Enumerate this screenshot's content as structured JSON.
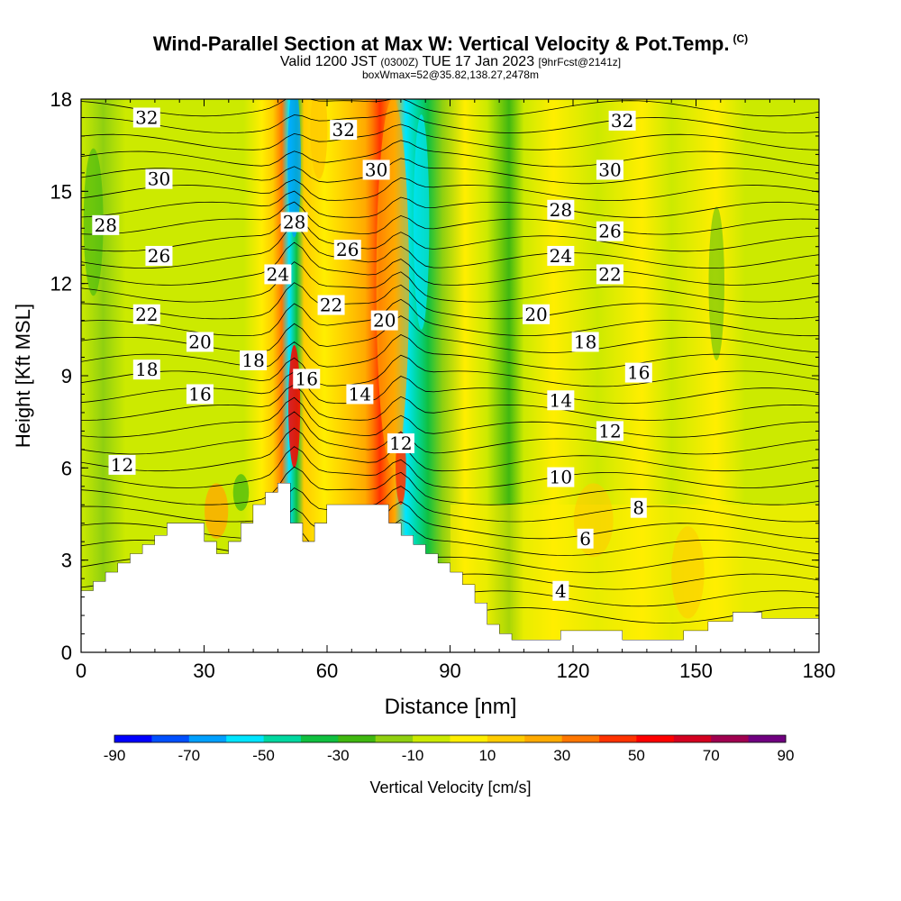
{
  "header": {
    "title_main": "Wind-Parallel Section at Max W: Vertical Velocity & Pot.Temp.",
    "title_copyright": "(C)",
    "valid_prefix": "Valid 1200 JST",
    "valid_utc": "(0300Z)",
    "valid_date": "TUE 17 Jan 2023",
    "forecast_info": "[9hrFcst@2141z]",
    "box_info": "boxWmax=52@35.82,138.27,2478m"
  },
  "chart_data": {
    "type": "heatmap",
    "xlabel": "Distance [nm]",
    "ylabel": "Height [Kft MSL]",
    "xlim": [
      0,
      180
    ],
    "ylim": [
      0,
      18
    ],
    "x_ticks": [
      "0",
      "30",
      "60",
      "90",
      "120",
      "150",
      "180"
    ],
    "y_ticks": [
      "0",
      "3",
      "6",
      "9",
      "12",
      "15",
      "18"
    ],
    "colorbar": {
      "label": "Vertical Velocity [cm/s]",
      "tick_labels": [
        "-90",
        "-70",
        "-50",
        "-30",
        "-10",
        "10",
        "30",
        "50",
        "70",
        "90"
      ],
      "colors": [
        "#0000ff",
        "#0050ff",
        "#00a0ff",
        "#00e5ff",
        "#00d8a0",
        "#10c040",
        "#40b810",
        "#90d010",
        "#ccea00",
        "#ffee00",
        "#ffcc00",
        "#ffaa00",
        "#ff7700",
        "#ff3300",
        "#ff0000",
        "#d40020",
        "#a00050",
        "#700080"
      ]
    },
    "terrain_profile": [
      [
        0,
        2
      ],
      [
        3,
        2
      ],
      [
        3,
        2.3
      ],
      [
        6,
        2.3
      ],
      [
        6,
        2.6
      ],
      [
        9,
        2.6
      ],
      [
        9,
        2.9
      ],
      [
        12,
        2.9
      ],
      [
        12,
        3.2
      ],
      [
        15,
        3.2
      ],
      [
        15,
        3.5
      ],
      [
        18,
        3.5
      ],
      [
        18,
        3.8
      ],
      [
        21,
        3.8
      ],
      [
        21,
        4.2
      ],
      [
        30,
        4.2
      ],
      [
        30,
        3.6
      ],
      [
        33,
        3.6
      ],
      [
        33,
        3.2
      ],
      [
        36,
        3.2
      ],
      [
        36,
        3.6
      ],
      [
        39,
        3.6
      ],
      [
        39,
        4.2
      ],
      [
        42,
        4.2
      ],
      [
        42,
        4.8
      ],
      [
        45,
        4.8
      ],
      [
        45,
        5.2
      ],
      [
        48,
        5.2
      ],
      [
        48,
        5.5
      ],
      [
        51,
        5.5
      ],
      [
        51,
        4.2
      ],
      [
        54,
        4.2
      ],
      [
        54,
        3.6
      ],
      [
        57,
        3.6
      ],
      [
        57,
        4.2
      ],
      [
        60,
        4.2
      ],
      [
        60,
        4.8
      ],
      [
        75,
        4.8
      ],
      [
        75,
        4.2
      ],
      [
        78,
        4.2
      ],
      [
        78,
        3.8
      ],
      [
        81,
        3.8
      ],
      [
        81,
        3.5
      ],
      [
        84,
        3.5
      ],
      [
        84,
        3.2
      ],
      [
        87,
        3.2
      ],
      [
        87,
        2.9
      ],
      [
        90,
        2.9
      ],
      [
        90,
        2.6
      ],
      [
        93,
        2.6
      ],
      [
        93,
        2.2
      ],
      [
        96,
        2.2
      ],
      [
        96,
        1.6
      ],
      [
        99,
        1.6
      ],
      [
        99,
        0.9
      ],
      [
        102,
        0.9
      ],
      [
        102,
        0.6
      ],
      [
        105,
        0.6
      ],
      [
        105,
        0.4
      ],
      [
        117,
        0.4
      ],
      [
        117,
        0.7
      ],
      [
        132,
        0.7
      ],
      [
        132,
        0.4
      ],
      [
        147,
        0.4
      ],
      [
        147,
        0.7
      ],
      [
        153,
        0.7
      ],
      [
        153,
        1.0
      ],
      [
        159,
        1.0
      ],
      [
        159,
        1.3
      ],
      [
        166,
        1.3
      ],
      [
        166,
        1.1
      ],
      [
        181,
        1.1
      ]
    ],
    "theta_labels": [
      {
        "text": "32",
        "x": 16,
        "y": 17.4
      },
      {
        "text": "32",
        "x": 64,
        "y": 17.0
      },
      {
        "text": "32",
        "x": 132,
        "y": 17.3
      },
      {
        "text": "30",
        "x": 19,
        "y": 15.4
      },
      {
        "text": "30",
        "x": 72,
        "y": 15.7
      },
      {
        "text": "30",
        "x": 129,
        "y": 15.7
      },
      {
        "text": "28",
        "x": 6,
        "y": 13.9
      },
      {
        "text": "28",
        "x": 52,
        "y": 14.0
      },
      {
        "text": "28",
        "x": 117,
        "y": 14.4
      },
      {
        "text": "26",
        "x": 19,
        "y": 12.9
      },
      {
        "text": "26",
        "x": 65,
        "y": 13.1
      },
      {
        "text": "26",
        "x": 129,
        "y": 13.7
      },
      {
        "text": "24",
        "x": 48,
        "y": 12.3
      },
      {
        "text": "24",
        "x": 117,
        "y": 12.9
      },
      {
        "text": "22",
        "x": 16,
        "y": 11.0
      },
      {
        "text": "22",
        "x": 61,
        "y": 11.3
      },
      {
        "text": "22",
        "x": 129,
        "y": 12.3
      },
      {
        "text": "20",
        "x": 29,
        "y": 10.1
      },
      {
        "text": "20",
        "x": 74,
        "y": 10.8
      },
      {
        "text": "20",
        "x": 111,
        "y": 11.0
      },
      {
        "text": "18",
        "x": 16,
        "y": 9.2
      },
      {
        "text": "18",
        "x": 42,
        "y": 9.5
      },
      {
        "text": "18",
        "x": 123,
        "y": 10.1
      },
      {
        "text": "16",
        "x": 29,
        "y": 8.4
      },
      {
        "text": "16",
        "x": 55,
        "y": 8.9
      },
      {
        "text": "16",
        "x": 136,
        "y": 9.1
      },
      {
        "text": "14",
        "x": 68,
        "y": 8.4
      },
      {
        "text": "14",
        "x": 117,
        "y": 8.2
      },
      {
        "text": "12",
        "x": 10,
        "y": 6.1
      },
      {
        "text": "12",
        "x": 78,
        "y": 6.8
      },
      {
        "text": "12",
        "x": 129,
        "y": 7.2
      },
      {
        "text": "10",
        "x": 117,
        "y": 5.7
      },
      {
        "text": "8",
        "x": 136,
        "y": 4.7
      },
      {
        "text": "6",
        "x": 123,
        "y": 3.7
      },
      {
        "text": "4",
        "x": 117,
        "y": 2.0
      }
    ]
  }
}
